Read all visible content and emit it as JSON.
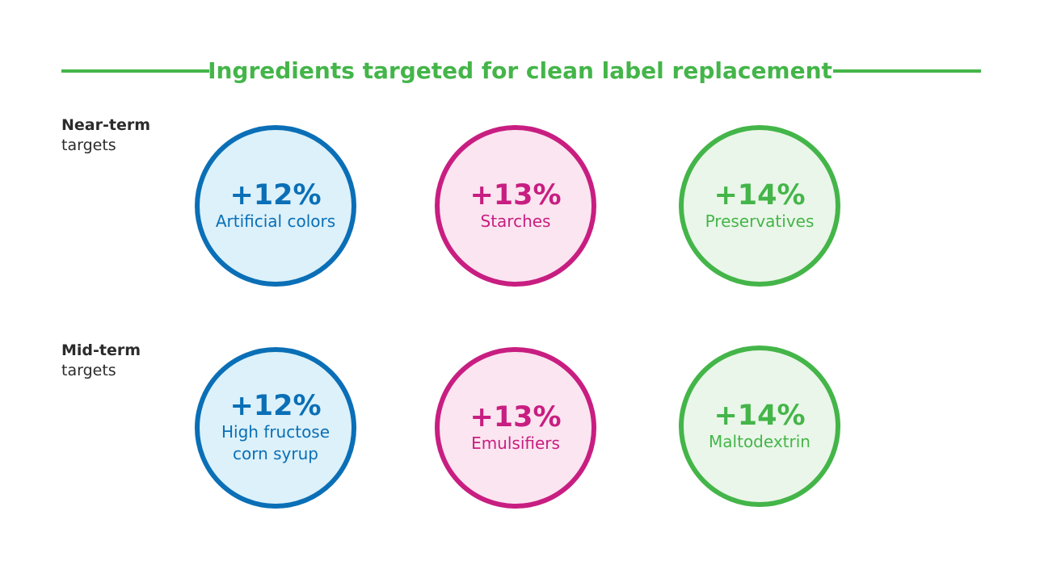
{
  "title": "Ingredients targeted for clean label replacement",
  "colors": {
    "accent_green": "#44b549",
    "blue": "#0a6fb6",
    "pink": "#c81e81",
    "green": "#44b549"
  },
  "rows": [
    {
      "label_line1": "Near-term",
      "label_line2": "targets",
      "items": [
        {
          "percent": "+12%",
          "name": "Artificial colors",
          "color": "blue"
        },
        {
          "percent": "+13%",
          "name": "Starches",
          "color": "pink"
        },
        {
          "percent": "+14%",
          "name": "Preservatives",
          "color": "green"
        }
      ]
    },
    {
      "label_line1": "Mid-term",
      "label_line2": "targets",
      "items": [
        {
          "percent": "+12%",
          "name": "High fructose corn syrup",
          "color": "blue"
        },
        {
          "percent": "+13%",
          "name": "Emulsifiers",
          "color": "pink"
        },
        {
          "percent": "+14%",
          "name": "Maltodextrin",
          "color": "green"
        }
      ]
    }
  ]
}
